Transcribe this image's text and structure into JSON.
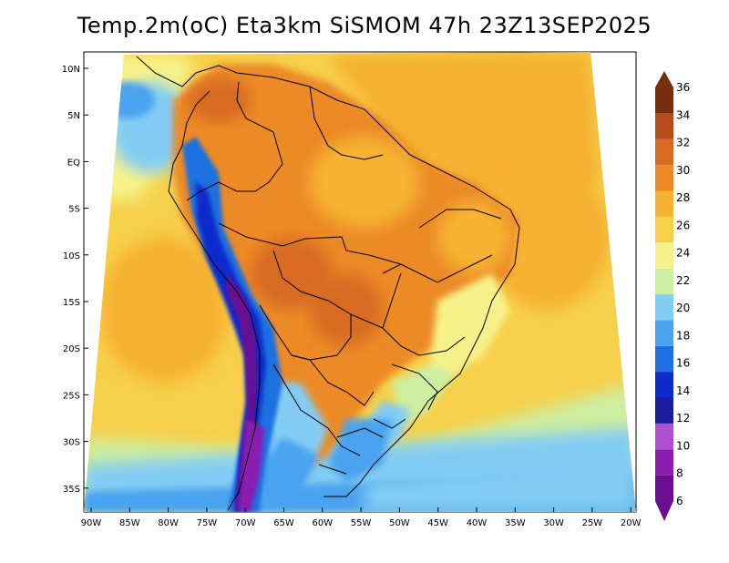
{
  "title": "Temp.2m(oC) Eta3km SiSMOM 47h 23Z13SEP2025",
  "lat_ticks": [
    "10N",
    "5N",
    "EQ",
    "5S",
    "10S",
    "15S",
    "20S",
    "25S",
    "30S",
    "35S"
  ],
  "lon_ticks": [
    "90W",
    "85W",
    "80W",
    "75W",
    "70W",
    "65W",
    "60W",
    "55W",
    "50W",
    "45W",
    "40W",
    "35W",
    "30W",
    "25W",
    "20W"
  ],
  "colorbar": {
    "labels": [
      "6",
      "8",
      "10",
      "12",
      "14",
      "16",
      "18",
      "20",
      "22",
      "24",
      "26",
      "28",
      "30",
      "32",
      "34",
      "36"
    ],
    "colors": [
      "#6a0d91",
      "#8a1fb0",
      "#b04fd0",
      "#1a1a9a",
      "#0a2acc",
      "#1b6fe0",
      "#4aa3ee",
      "#82ccf4",
      "#cdeea0",
      "#f6f28a",
      "#f6d04a",
      "#f6b232",
      "#ec8a28",
      "#d86a22",
      "#b44c1c",
      "#7a2e10"
    ],
    "under_color": "#6a0d91",
    "over_color": "#7a2e10"
  }
}
